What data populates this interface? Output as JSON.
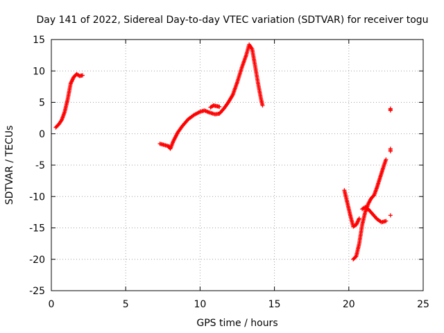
{
  "chart_data": {
    "type": "scatter",
    "title": "Day 141 of 2022, Sidereal Day-to-day VTEC variation (SDTVAR) for receiver togu",
    "xlabel": "GPS time / hours",
    "ylabel": "SDTVAR / TECUs",
    "xlim": [
      0,
      25
    ],
    "ylim": [
      -25,
      15
    ],
    "x_ticks": [
      0,
      5,
      10,
      15,
      20,
      25
    ],
    "y_ticks": [
      -25,
      -20,
      -15,
      -10,
      -5,
      0,
      5,
      10,
      15
    ],
    "grid": true,
    "marker": "+",
    "color": "#ff0000",
    "series": [
      {
        "points": [
          [
            0.3,
            1.0
          ],
          [
            0.5,
            1.5
          ],
          [
            0.7,
            2.2
          ],
          [
            0.9,
            3.5
          ],
          [
            1.1,
            5.5
          ],
          [
            1.3,
            8.0
          ],
          [
            1.5,
            9.0
          ],
          [
            1.7,
            9.5
          ],
          [
            1.9,
            9.2
          ],
          [
            2.1,
            9.3
          ],
          [
            7.3,
            -1.6
          ],
          [
            7.6,
            -1.8
          ],
          [
            7.9,
            -2.0
          ],
          [
            8.0,
            -2.4
          ],
          [
            8.2,
            -1.2
          ],
          [
            8.5,
            0.2
          ],
          [
            8.8,
            1.2
          ],
          [
            9.2,
            2.3
          ],
          [
            9.6,
            3.0
          ],
          [
            10.0,
            3.5
          ],
          [
            10.3,
            3.7
          ],
          [
            10.6,
            3.4
          ],
          [
            11.0,
            3.1
          ],
          [
            11.3,
            3.2
          ],
          [
            11.6,
            4.0
          ],
          [
            11.9,
            5.0
          ],
          [
            12.2,
            6.2
          ],
          [
            12.5,
            8.2
          ],
          [
            12.8,
            10.5
          ],
          [
            13.1,
            12.5
          ],
          [
            13.3,
            14.2
          ],
          [
            13.5,
            13.5
          ],
          [
            13.7,
            10.8
          ],
          [
            13.9,
            8.0
          ],
          [
            14.1,
            5.5
          ],
          [
            14.2,
            4.5
          ],
          [
            10.7,
            4.2
          ],
          [
            10.9,
            4.5
          ],
          [
            11.1,
            4.4
          ],
          [
            11.3,
            4.3
          ],
          [
            19.7,
            -9.0
          ],
          [
            19.9,
            -11.0
          ],
          [
            20.1,
            -13.0
          ],
          [
            20.3,
            -14.8
          ],
          [
            20.5,
            -14.5
          ],
          [
            20.7,
            -13.5
          ],
          [
            20.3,
            -20.0
          ],
          [
            20.5,
            -19.5
          ],
          [
            20.7,
            -17.5
          ],
          [
            20.9,
            -14.5
          ],
          [
            21.1,
            -12.5
          ],
          [
            21.3,
            -11.2
          ],
          [
            21.5,
            -10.3
          ],
          [
            21.7,
            -9.8
          ],
          [
            21.9,
            -8.5
          ],
          [
            22.1,
            -7.0
          ],
          [
            22.3,
            -5.5
          ],
          [
            22.5,
            -4.1
          ],
          [
            20.9,
            -12.0
          ],
          [
            21.1,
            -11.7
          ],
          [
            21.3,
            -12.0
          ],
          [
            21.6,
            -12.8
          ],
          [
            21.9,
            -13.6
          ],
          [
            22.2,
            -14.1
          ],
          [
            22.5,
            -13.9
          ],
          [
            22.8,
            4.0
          ],
          [
            22.8,
            3.7
          ],
          [
            22.8,
            -2.4
          ],
          [
            22.8,
            -2.8
          ],
          [
            22.8,
            -13.0
          ]
        ]
      }
    ]
  }
}
